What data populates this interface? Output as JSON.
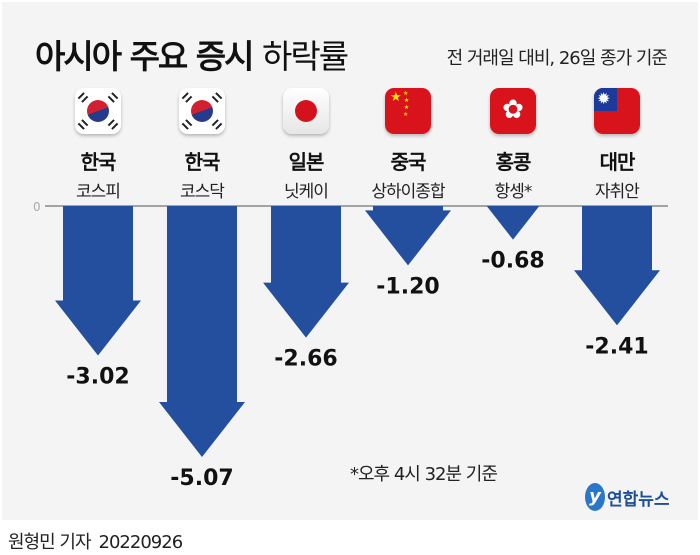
{
  "header": {
    "title_bold": "아시아 주요 증시",
    "title_light": "하락률",
    "subtitle": "전 거래일 대비, 26일 종가 기준"
  },
  "chart_data": {
    "type": "bar",
    "title": "아시아 주요 증시 하락률",
    "subtitle": "전 거래일 대비, 26일 종가 기준",
    "categories": [
      {
        "country": "한국",
        "index": "코스피",
        "flag": "korea"
      },
      {
        "country": "한국",
        "index": "코스닥",
        "flag": "korea"
      },
      {
        "country": "일본",
        "index": "닛케이",
        "flag": "japan"
      },
      {
        "country": "중국",
        "index": "상하이종합",
        "flag": "china"
      },
      {
        "country": "홍콩",
        "index": "항셍*",
        "flag": "hongkong"
      },
      {
        "country": "대만",
        "index": "자취안",
        "flag": "taiwan"
      }
    ],
    "values": [
      -3.02,
      -5.07,
      -2.66,
      -1.2,
      -0.68,
      -2.41
    ],
    "labels": [
      "-3.02",
      "-5.07",
      "-2.66",
      "-1.20",
      "-0.68",
      "-2.41"
    ],
    "zero_label": "0",
    "ylabel": "",
    "xlabel": "",
    "ylim": [
      -5.5,
      0
    ],
    "bar_color": "#244f9e"
  },
  "footer": {
    "note": "*오후 4시 32분 기준",
    "logo": "연합뉴스",
    "reporter": "원형민 기자",
    "date": "20220926"
  }
}
